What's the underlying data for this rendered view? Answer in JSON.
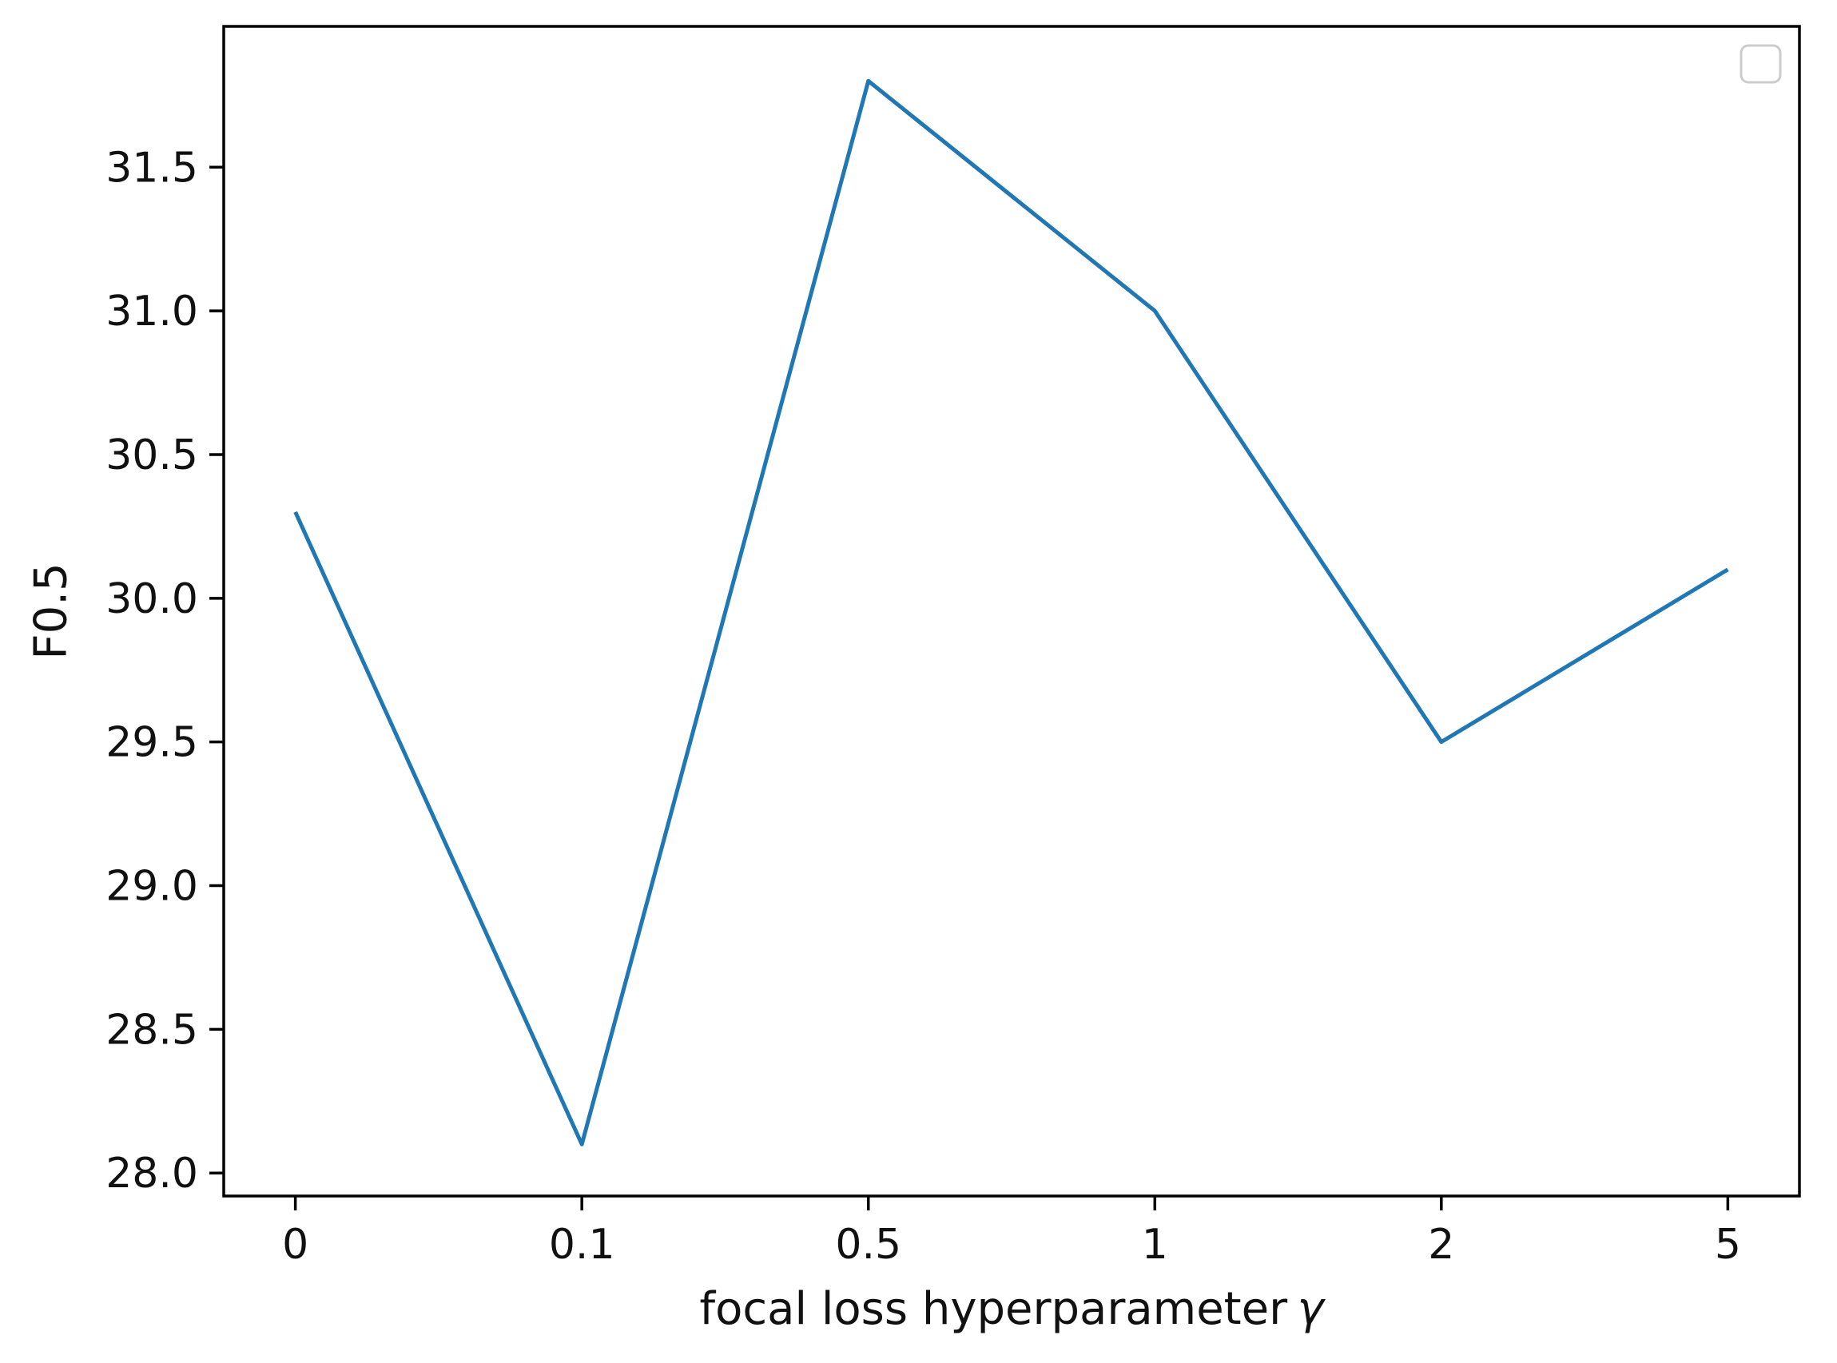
{
  "chart_data": {
    "type": "line",
    "title": "",
    "xlabel": "focal loss hyperparameter",
    "xlabel_symbol": "γ",
    "ylabel": "F0.5",
    "categories": [
      "0",
      "0.1",
      "0.5",
      "1",
      "2",
      "5"
    ],
    "series": [
      {
        "name": "",
        "color": "#1f77b4",
        "values": [
          30.3,
          28.1,
          31.8,
          31.0,
          29.5,
          30.1
        ]
      }
    ],
    "yticks": [
      {
        "value": 28.0,
        "label": "28.0"
      },
      {
        "value": 28.5,
        "label": "28.5"
      },
      {
        "value": 29.0,
        "label": "29.0"
      },
      {
        "value": 29.5,
        "label": "29.5"
      },
      {
        "value": 30.0,
        "label": "30.0"
      },
      {
        "value": 30.5,
        "label": "30.5"
      },
      {
        "value": 31.0,
        "label": "31.0"
      },
      {
        "value": 31.5,
        "label": "31.5"
      }
    ],
    "ylim": [
      27.92,
      31.99
    ],
    "x_margin_frac": 0.05,
    "grid": false,
    "legend": {
      "visible": true,
      "entries": [],
      "position": "upper right",
      "border_color": "#cccccc"
    },
    "axis_color": "#000000"
  }
}
